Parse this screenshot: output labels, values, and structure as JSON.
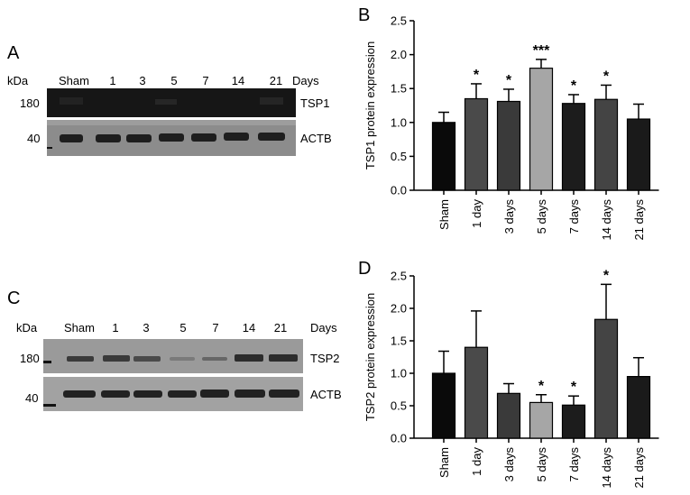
{
  "panels": [
    {
      "letter": "A",
      "kda_label": "kDa",
      "lanes": [
        "Sham",
        "1",
        "3",
        "5",
        "7",
        "14",
        "21"
      ],
      "days_label": "Days",
      "upper_marker": "180",
      "lower_marker": "40",
      "target_label": "TSP1",
      "control_label": "ACTB"
    },
    {
      "letter": "C",
      "kda_label": "kDa",
      "lanes": [
        "Sham",
        "1",
        "3",
        "5",
        "7",
        "14",
        "21"
      ],
      "days_label": "Days",
      "upper_marker": "180",
      "lower_marker": "40",
      "target_label": "TSP2",
      "control_label": "ACTB"
    }
  ],
  "chart_letters": [
    "B",
    "D"
  ],
  "chart_data": [
    {
      "type": "bar",
      "ylabel": "TSP1 protein expression",
      "ylim": [
        0,
        2.5
      ],
      "yticks": [
        "0.0",
        "0.5",
        "1.0",
        "1.5",
        "2.0",
        "2.5"
      ],
      "categories": [
        "Sham",
        "1 day",
        "3 days",
        "5 days",
        "7 days",
        "14 days",
        "21 days"
      ],
      "values": [
        1.0,
        1.35,
        1.31,
        1.8,
        1.28,
        1.34,
        1.05
      ],
      "errors": [
        0.15,
        0.22,
        0.18,
        0.13,
        0.13,
        0.21,
        0.22
      ],
      "significance": [
        "",
        "*",
        "*",
        "***",
        "*",
        "*",
        ""
      ],
      "colors": [
        "#0a0a0a",
        "#4a4a4a",
        "#3a3a3a",
        "#a6a6a6",
        "#1c1c1c",
        "#444444",
        "#1a1a1a"
      ]
    },
    {
      "type": "bar",
      "ylabel": "TSP2 protein expression",
      "ylim": [
        0,
        2.5
      ],
      "yticks": [
        "0.0",
        "0.5",
        "1.0",
        "1.5",
        "2.0",
        "2.5"
      ],
      "categories": [
        "Sham",
        "1 day",
        "3 days",
        "5 days",
        "7 days",
        "14 days",
        "21 days"
      ],
      "values": [
        1.0,
        1.4,
        0.69,
        0.55,
        0.51,
        1.83,
        0.95
      ],
      "errors": [
        0.34,
        0.56,
        0.15,
        0.12,
        0.14,
        0.54,
        0.29
      ],
      "significance": [
        "",
        "",
        "",
        "*",
        "*",
        "*",
        ""
      ],
      "colors": [
        "#0a0a0a",
        "#4a4a4a",
        "#3a3a3a",
        "#a6a6a6",
        "#1c1c1c",
        "#444444",
        "#1a1a1a"
      ]
    }
  ]
}
